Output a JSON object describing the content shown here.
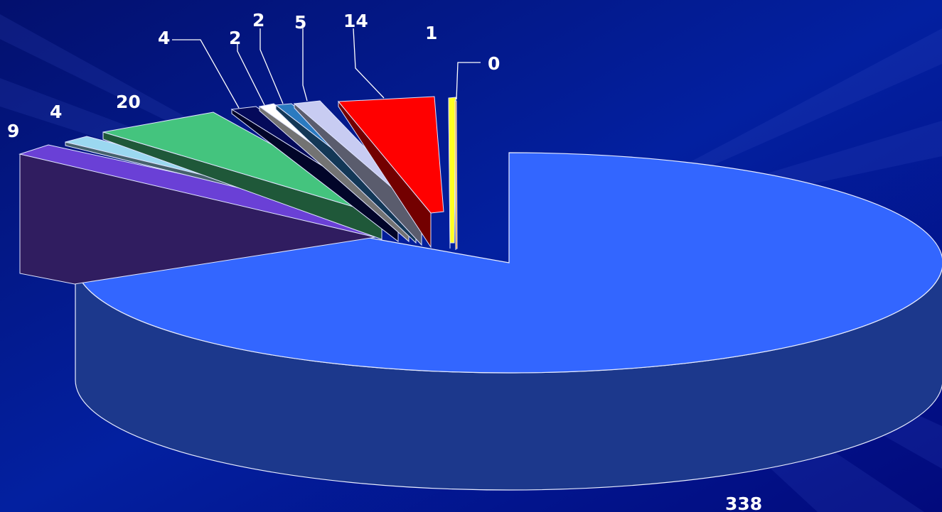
{
  "chart_data": {
    "type": "pie",
    "style": "3d-exploded",
    "title": "",
    "legend": "none",
    "slices": [
      {
        "label": "338",
        "value": 338,
        "color": "#3366ff"
      },
      {
        "label": "9",
        "value": 9,
        "color": "#6a40d6"
      },
      {
        "label": "4",
        "value": 4,
        "color": "#9bd8f0"
      },
      {
        "label": "20",
        "value": 20,
        "color": "#44c47e"
      },
      {
        "label": "4",
        "value": 4,
        "color": "#050a5a"
      },
      {
        "label": "2",
        "value": 2,
        "color": "#ffffff"
      },
      {
        "label": "2",
        "value": 2,
        "color": "#2a7ac0"
      },
      {
        "label": "5",
        "value": 5,
        "color": "#c8ccf2"
      },
      {
        "label": "14",
        "value": 14,
        "color": "#ff0000"
      },
      {
        "label": "1",
        "value": 1,
        "color": "#ffff22"
      },
      {
        "label": "0",
        "value": 0,
        "color": "#ff9900"
      }
    ]
  }
}
